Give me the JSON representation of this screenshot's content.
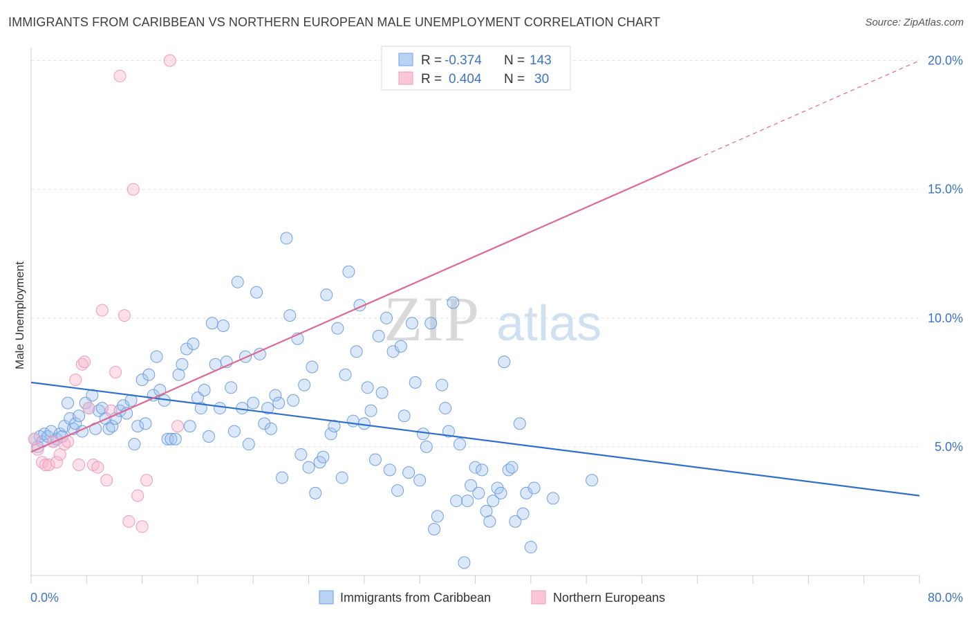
{
  "header": {
    "title": "IMMIGRANTS FROM CARIBBEAN VS NORTHERN EUROPEAN MALE UNEMPLOYMENT CORRELATION CHART",
    "source": "Source: ZipAtlas.com"
  },
  "watermark": {
    "zip": "ZIP",
    "atlas": "atlas"
  },
  "chart_data": {
    "type": "scatter",
    "title": "IMMIGRANTS FROM CARIBBEAN VS NORTHERN EUROPEAN MALE UNEMPLOYMENT CORRELATION CHART",
    "xlabel": "",
    "ylabel": "Male Unemployment",
    "xlim": [
      0,
      80
    ],
    "ylim": [
      0,
      20.5
    ],
    "x_tick_labels": [
      "0.0%",
      "80.0%"
    ],
    "y_ticks": [
      5,
      10,
      15,
      20
    ],
    "y_tick_labels": [
      "5.0%",
      "10.0%",
      "15.0%",
      "20.0%"
    ],
    "grid": true,
    "legend_position": "top-center",
    "stats": [
      {
        "r_label": "R =",
        "r": "-0.374",
        "n_label": "N =",
        "n": "143"
      },
      {
        "r_label": "R =",
        "r": "0.404",
        "n_label": "N =",
        "n": "30"
      }
    ],
    "series": [
      {
        "name": "Immigrants from Caribbean",
        "color": "#6f9fe0",
        "trend": {
          "x0": 0,
          "y0": 7.5,
          "x1": 80,
          "y1": 3.1,
          "color": "#2e6fce"
        },
        "points": [
          [
            0.3,
            5.3
          ],
          [
            0.6,
            5.0
          ],
          [
            0.8,
            5.4
          ],
          [
            1.0,
            5.2
          ],
          [
            1.2,
            5.5
          ],
          [
            1.5,
            5.4
          ],
          [
            1.8,
            5.6
          ],
          [
            2.0,
            5.2
          ],
          [
            2.3,
            5.3
          ],
          [
            2.6,
            5.5
          ],
          [
            2.8,
            5.4
          ],
          [
            3.0,
            5.8
          ],
          [
            3.3,
            6.7
          ],
          [
            3.5,
            6.1
          ],
          [
            3.8,
            5.7
          ],
          [
            4.0,
            5.9
          ],
          [
            4.3,
            6.2
          ],
          [
            4.6,
            5.6
          ],
          [
            4.9,
            6.7
          ],
          [
            5.2,
            6.5
          ],
          [
            5.5,
            7.0
          ],
          [
            5.8,
            5.7
          ],
          [
            6.1,
            6.4
          ],
          [
            6.4,
            6.5
          ],
          [
            6.7,
            6.1
          ],
          [
            7.0,
            5.7
          ],
          [
            7.3,
            5.8
          ],
          [
            7.6,
            6.1
          ],
          [
            8.0,
            6.4
          ],
          [
            8.3,
            6.6
          ],
          [
            8.6,
            6.3
          ],
          [
            9.0,
            6.8
          ],
          [
            9.3,
            5.1
          ],
          [
            9.6,
            5.8
          ],
          [
            10.0,
            7.6
          ],
          [
            10.3,
            5.9
          ],
          [
            10.6,
            7.8
          ],
          [
            11.0,
            7.0
          ],
          [
            11.3,
            8.5
          ],
          [
            11.6,
            7.2
          ],
          [
            12.0,
            6.8
          ],
          [
            12.3,
            5.3
          ],
          [
            12.6,
            5.3
          ],
          [
            13.0,
            5.3
          ],
          [
            13.3,
            7.8
          ],
          [
            13.6,
            8.2
          ],
          [
            14.0,
            8.8
          ],
          [
            14.3,
            5.8
          ],
          [
            14.6,
            9.0
          ],
          [
            15.0,
            6.9
          ],
          [
            15.3,
            6.5
          ],
          [
            15.6,
            7.2
          ],
          [
            16.0,
            5.4
          ],
          [
            16.3,
            9.8
          ],
          [
            16.6,
            8.2
          ],
          [
            17.0,
            6.5
          ],
          [
            17.3,
            9.7
          ],
          [
            17.6,
            8.3
          ],
          [
            18.0,
            7.3
          ],
          [
            18.3,
            5.6
          ],
          [
            18.6,
            11.4
          ],
          [
            19.0,
            6.5
          ],
          [
            19.3,
            8.5
          ],
          [
            19.6,
            5.1
          ],
          [
            20.0,
            6.7
          ],
          [
            20.3,
            11.0
          ],
          [
            20.6,
            8.6
          ],
          [
            21.0,
            5.9
          ],
          [
            21.3,
            6.5
          ],
          [
            21.6,
            5.7
          ],
          [
            22.0,
            7.0
          ],
          [
            22.3,
            6.7
          ],
          [
            22.6,
            3.8
          ],
          [
            23.0,
            13.1
          ],
          [
            23.3,
            10.1
          ],
          [
            23.6,
            6.8
          ],
          [
            24.0,
            9.2
          ],
          [
            24.3,
            4.7
          ],
          [
            24.6,
            7.4
          ],
          [
            25.0,
            4.2
          ],
          [
            25.3,
            8.1
          ],
          [
            25.6,
            3.2
          ],
          [
            26.0,
            4.4
          ],
          [
            26.3,
            4.6
          ],
          [
            26.6,
            10.9
          ],
          [
            27.0,
            5.5
          ],
          [
            27.3,
            5.8
          ],
          [
            27.6,
            9.6
          ],
          [
            28.0,
            3.8
          ],
          [
            28.3,
            7.8
          ],
          [
            28.6,
            11.8
          ],
          [
            29.0,
            6.0
          ],
          [
            29.3,
            8.7
          ],
          [
            29.6,
            10.5
          ],
          [
            30.0,
            5.9
          ],
          [
            30.3,
            7.3
          ],
          [
            30.6,
            6.4
          ],
          [
            31.0,
            4.5
          ],
          [
            31.3,
            9.3
          ],
          [
            31.6,
            7.1
          ],
          [
            32.0,
            10.0
          ],
          [
            32.3,
            4.1
          ],
          [
            32.6,
            8.7
          ],
          [
            33.0,
            3.3
          ],
          [
            33.3,
            8.9
          ],
          [
            33.6,
            6.2
          ],
          [
            34.0,
            4.0
          ],
          [
            34.3,
            9.8
          ],
          [
            34.6,
            7.5
          ],
          [
            35.0,
            3.7
          ],
          [
            35.3,
            5.5
          ],
          [
            35.6,
            5.0
          ],
          [
            36.0,
            9.8
          ],
          [
            36.3,
            1.8
          ],
          [
            36.6,
            2.3
          ],
          [
            37.0,
            7.4
          ],
          [
            37.3,
            6.5
          ],
          [
            37.6,
            5.6
          ],
          [
            38.0,
            10.6
          ],
          [
            38.3,
            2.9
          ],
          [
            38.6,
            5.1
          ],
          [
            39.0,
            0.5
          ],
          [
            39.3,
            2.9
          ],
          [
            39.6,
            3.5
          ],
          [
            40.0,
            4.2
          ],
          [
            40.3,
            3.2
          ],
          [
            40.6,
            4.1
          ],
          [
            41.0,
            2.5
          ],
          [
            41.3,
            2.1
          ],
          [
            41.6,
            2.9
          ],
          [
            42.0,
            3.4
          ],
          [
            42.3,
            3.2
          ],
          [
            42.6,
            8.3
          ],
          [
            43.0,
            4.1
          ],
          [
            43.3,
            4.2
          ],
          [
            43.6,
            2.1
          ],
          [
            44.0,
            5.9
          ],
          [
            44.3,
            2.4
          ],
          [
            44.6,
            3.2
          ],
          [
            45.0,
            1.1
          ],
          [
            45.3,
            3.4
          ],
          [
            47.0,
            3.0
          ],
          [
            50.5,
            3.7
          ]
        ]
      },
      {
        "name": "Northern Europeans",
        "color": "#f19bb6",
        "trend": {
          "x0": 0,
          "y0": 4.8,
          "x1": 60,
          "y1": 16.2,
          "dash_x1": 80,
          "dash_y1": 20.0,
          "color": "#e0678f"
        },
        "points": [
          [
            0.3,
            5.3
          ],
          [
            0.6,
            4.9
          ],
          [
            1.0,
            4.4
          ],
          [
            1.3,
            4.3
          ],
          [
            1.6,
            4.3
          ],
          [
            2.0,
            5.2
          ],
          [
            2.3,
            4.4
          ],
          [
            2.6,
            4.7
          ],
          [
            3.0,
            5.1
          ],
          [
            3.3,
            5.2
          ],
          [
            4.0,
            7.6
          ],
          [
            4.3,
            4.3
          ],
          [
            4.6,
            8.2
          ],
          [
            4.8,
            8.3
          ],
          [
            5.2,
            6.5
          ],
          [
            5.6,
            4.3
          ],
          [
            6.0,
            4.2
          ],
          [
            6.4,
            10.3
          ],
          [
            6.8,
            3.7
          ],
          [
            7.2,
            6.4
          ],
          [
            7.6,
            7.9
          ],
          [
            8.0,
            19.4
          ],
          [
            8.4,
            10.1
          ],
          [
            8.8,
            2.1
          ],
          [
            9.2,
            15.0
          ],
          [
            9.6,
            3.1
          ],
          [
            10.0,
            1.9
          ],
          [
            10.4,
            3.7
          ],
          [
            12.5,
            20.0
          ],
          [
            13.2,
            5.8
          ]
        ]
      }
    ]
  },
  "legend": {
    "items": [
      {
        "label": "Immigrants from Caribbean",
        "color": "#6f9fe0"
      },
      {
        "label": "Northern Europeans",
        "color": "#f19bb6"
      }
    ]
  }
}
